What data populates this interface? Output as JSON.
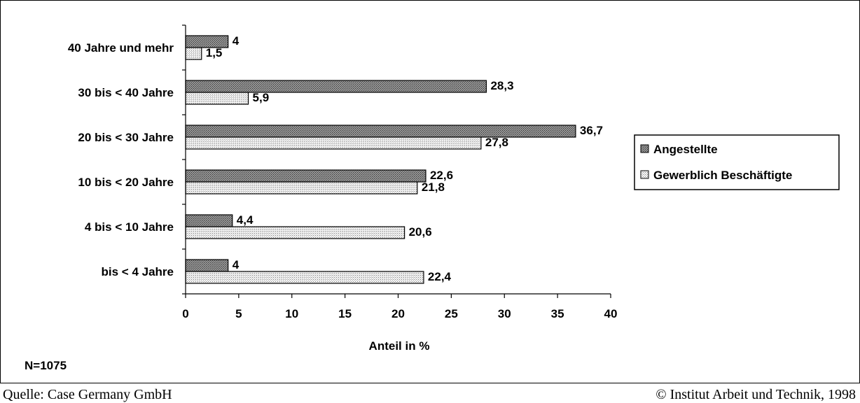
{
  "chart_data": {
    "type": "bar",
    "orientation": "horizontal",
    "categories": [
      "40 Jahre und mehr",
      "30 bis < 40 Jahre",
      "20 bis < 30 Jahre",
      "10 bis < 20 Jahre",
      "4 bis < 10 Jahre",
      "bis < 4 Jahre"
    ],
    "series": [
      {
        "name": "Angestellte",
        "values": [
          4,
          28.3,
          36.7,
          22.6,
          4.4,
          4
        ],
        "labels": [
          "4",
          "28,3",
          "36,7",
          "22,6",
          "4,4",
          "4"
        ],
        "color": "#777777"
      },
      {
        "name": "Gewerblich Beschäftigte",
        "values": [
          1.5,
          5.9,
          27.8,
          21.8,
          20.6,
          22.4
        ],
        "labels": [
          "1,5",
          "5,9",
          "27,8",
          "21,8",
          "20,6",
          "22,4"
        ],
        "color": "#dddddd"
      }
    ],
    "xlabel": "Anteil in %",
    "xlim": [
      0,
      40
    ],
    "xticks": [
      "0",
      "5",
      "10",
      "15",
      "20",
      "25",
      "30",
      "35",
      "40"
    ],
    "legend_position": "right",
    "grid": false,
    "annotation": "N=1075"
  },
  "footer": {
    "source": "Quelle: Case Germany GmbH",
    "copyright": "© Institut Arbeit und Technik, 1998"
  }
}
